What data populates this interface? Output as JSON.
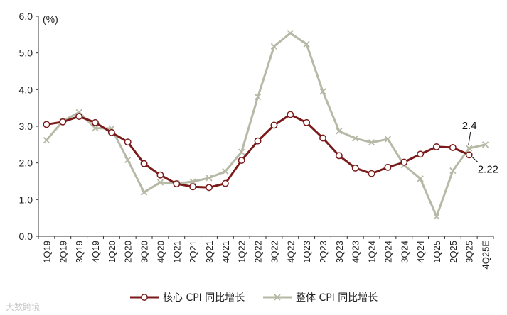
{
  "chart_data": {
    "type": "line",
    "unit_label": "(%)",
    "ylim": [
      0,
      6
    ],
    "yticks": [
      "0.0",
      "1.0",
      "2.0",
      "3.0",
      "4.0",
      "5.0",
      "6.0"
    ],
    "grid": false,
    "legend_position": "bottom-center",
    "categories": [
      "1Q19",
      "2Q19",
      "3Q19",
      "4Q19",
      "1Q20",
      "2Q20",
      "3Q20",
      "4Q20",
      "1Q21",
      "2Q21",
      "3Q21",
      "4Q21",
      "1Q22",
      "2Q22",
      "3Q22",
      "4Q22",
      "1Q23",
      "2Q23",
      "3Q23",
      "4Q23",
      "1Q24",
      "2Q24",
      "3Q24",
      "4Q24",
      "1Q25",
      "2Q25",
      "3Q25",
      "4Q25E"
    ],
    "series": [
      {
        "name": "核心 CPI 同比增长",
        "color": "#7a1a1a",
        "marker": "circle",
        "values": [
          3.05,
          3.12,
          3.27,
          3.1,
          2.83,
          2.57,
          1.98,
          1.67,
          1.43,
          1.35,
          1.33,
          1.44,
          2.07,
          2.6,
          3.03,
          3.32,
          3.1,
          2.68,
          2.2,
          1.86,
          1.71,
          1.88,
          2.02,
          2.24,
          2.44,
          2.42,
          2.22,
          null
        ]
      },
      {
        "name": "整体 CPI 同比增长",
        "color": "#b5b9a5",
        "marker": "x",
        "values": [
          2.62,
          3.14,
          3.38,
          2.95,
          2.94,
          2.08,
          1.2,
          1.47,
          1.44,
          1.49,
          1.59,
          1.77,
          2.3,
          3.8,
          5.18,
          5.54,
          5.24,
          3.95,
          2.87,
          2.67,
          2.56,
          2.65,
          1.94,
          1.57,
          0.54,
          1.79,
          2.4,
          2.5
        ]
      }
    ],
    "annotations": [
      {
        "text": "2.4",
        "series": 1,
        "index": 26
      },
      {
        "text": "2.22",
        "series": 0,
        "index": 26
      }
    ]
  },
  "watermark": "大数跨境"
}
